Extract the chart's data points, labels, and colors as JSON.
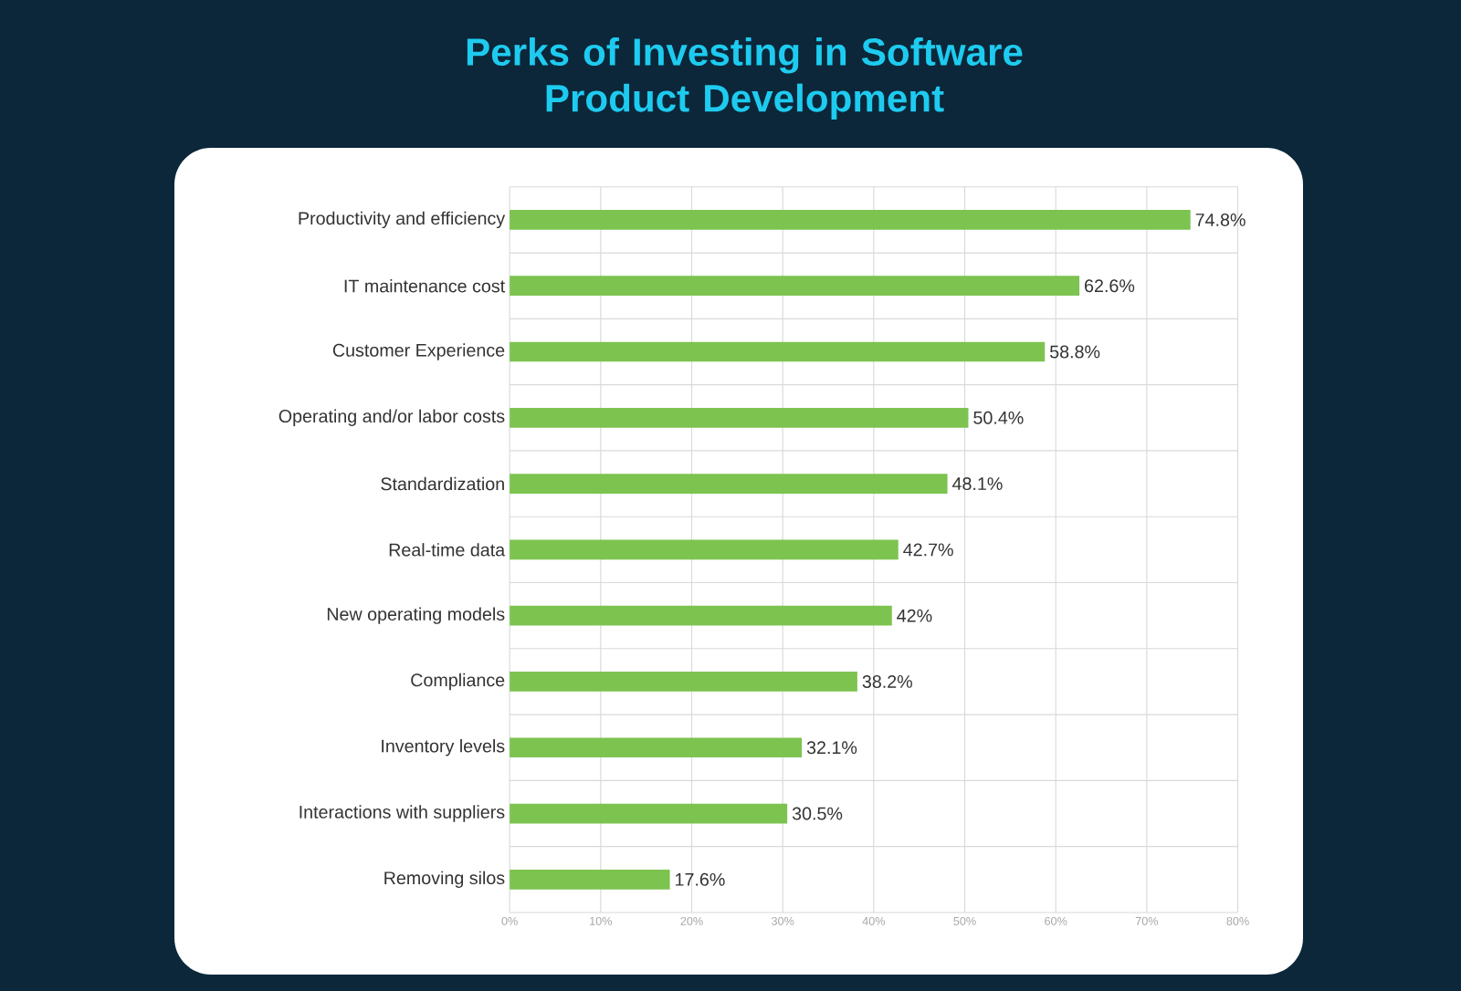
{
  "chart_data": {
    "type": "bar",
    "orientation": "horizontal",
    "title": "Perks of Investing in Software Product Development",
    "categories": [
      "Productivity and efficiency",
      "IT maintenance cost",
      "Customer Experience",
      "Operating and/or labor costs",
      "Standardization",
      "Real-time data",
      "New operating models",
      "Compliance",
      "Inventory levels",
      "Interactions with suppliers",
      "Removing silos"
    ],
    "values": [
      74.8,
      62.6,
      58.8,
      50.4,
      48.1,
      42.7,
      42,
      38.2,
      32.1,
      30.5,
      17.6
    ],
    "value_labels": [
      "74.8%",
      "62.6%",
      "58.8%",
      "50.4%",
      "48.1%",
      "42.7%",
      "42%",
      "38.2%",
      "32.1%",
      "30.5%",
      "17.6%"
    ],
    "color": "#7dc350",
    "xlim": [
      0,
      80
    ],
    "xticks": [
      {
        "value": 0,
        "label": "0%"
      },
      {
        "value": 10,
        "label": "10%"
      },
      {
        "value": 20,
        "label": "20%"
      },
      {
        "value": 30,
        "label": "30%"
      },
      {
        "value": 40,
        "label": "40%"
      },
      {
        "value": 50,
        "label": "50%"
      },
      {
        "value": 60,
        "label": "60%"
      },
      {
        "value": 70,
        "label": "70%"
      },
      {
        "value": 80,
        "label": "80%"
      }
    ],
    "grid": true
  }
}
